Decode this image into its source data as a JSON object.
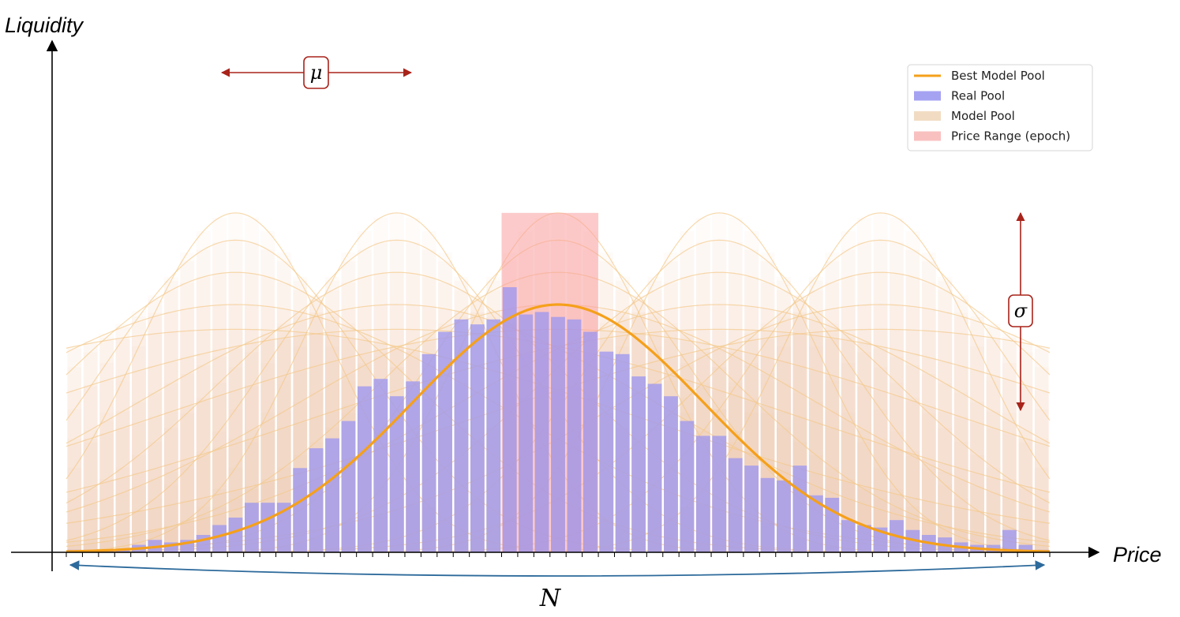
{
  "labels": {
    "y_axis": "Liquidity",
    "x_axis": "Price",
    "mu": "μ",
    "sigma": "σ",
    "n": "N"
  },
  "legend": [
    {
      "label": "Best Model Pool",
      "color": "#f5a01a",
      "kind": "line"
    },
    {
      "label": "Real Pool",
      "color": "#a6a2f2",
      "kind": "patch"
    },
    {
      "label": "Model Pool",
      "color": "#f1dcc3",
      "kind": "patch"
    },
    {
      "label": "Price Range (epoch)",
      "color": "#f9c0c0",
      "kind": "patch"
    }
  ],
  "colors": {
    "best_model": "#f5a01a",
    "real_pool": "#9e97f0",
    "model_pool": "#edc99f",
    "price_range": "#fa9e9e",
    "annotation": "#a8231a",
    "n_arrow": "#2d6a9b",
    "candidate_curve": "#f3c98a"
  },
  "chart_data": {
    "type": "bar",
    "bins": 61,
    "real_pool": [
      0.01,
      0.01,
      0.01,
      0.01,
      0.03,
      0.05,
      0.04,
      0.05,
      0.07,
      0.11,
      0.14,
      0.2,
      0.2,
      0.2,
      0.34,
      0.42,
      0.46,
      0.53,
      0.67,
      0.7,
      0.63,
      0.69,
      0.8,
      0.89,
      0.94,
      0.92,
      0.94,
      1.07,
      0.96,
      0.97,
      0.95,
      0.94,
      0.89,
      0.81,
      0.8,
      0.71,
      0.68,
      0.63,
      0.53,
      0.47,
      0.47,
      0.38,
      0.35,
      0.3,
      0.29,
      0.35,
      0.23,
      0.22,
      0.13,
      0.11,
      0.1,
      0.13,
      0.09,
      0.07,
      0.06,
      0.04,
      0.03,
      0.03,
      0.09,
      0.03,
      0.01
    ],
    "best_model": {
      "mu_bin": 30,
      "sigma_bins": 9,
      "peak": 1.0
    },
    "candidate_models": {
      "mu_bins": [
        10,
        20,
        30,
        40,
        50
      ],
      "sigma_bins": [
        6,
        8,
        11,
        16,
        25
      ],
      "relative_peak": [
        1.37,
        1.26,
        1.13,
        1.0,
        0.9
      ]
    },
    "price_range_bins": [
      27,
      33
    ]
  }
}
